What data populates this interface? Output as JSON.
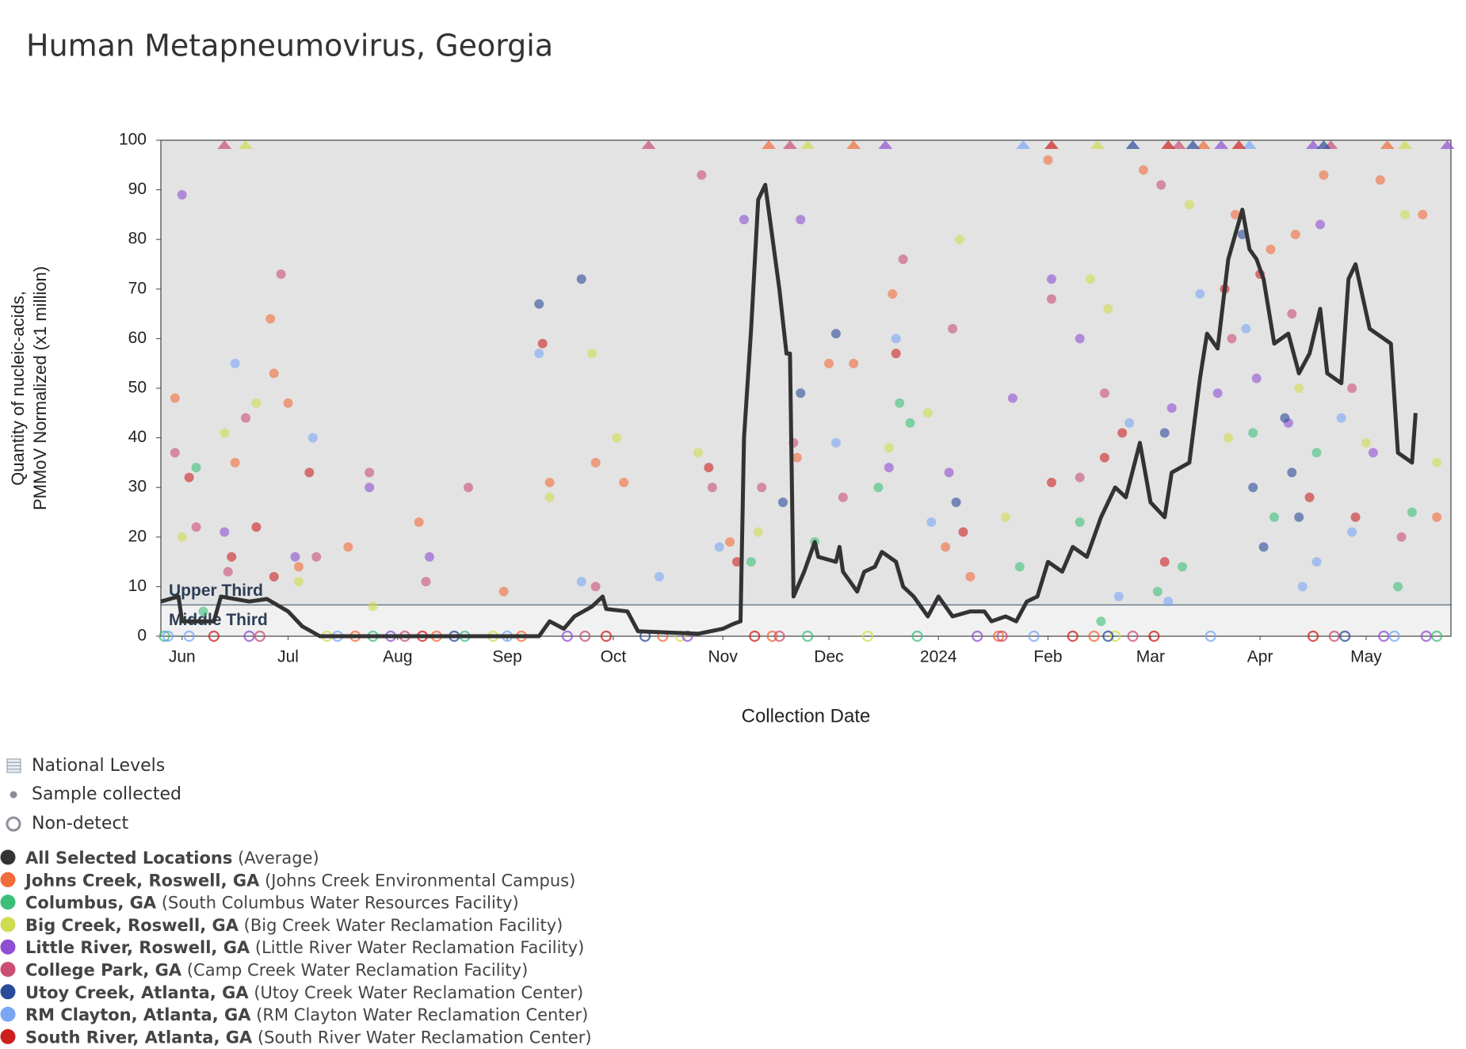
{
  "chart_data": {
    "type": "line",
    "title": "Human Metapneumovirus, Georgia",
    "x_label": "Collection Date",
    "y_label": [
      "Quantity of nucleic-acids,",
      "PMMoV Normalized (x1 million)"
    ],
    "xlim": [
      "2023-05-26",
      "2024-05-25"
    ],
    "ylim": [
      0,
      100
    ],
    "yticks": [
      0,
      10,
      20,
      30,
      40,
      50,
      60,
      70,
      80,
      90,
      100
    ],
    "xticks": [
      {
        "value": "2023-06-01",
        "label": "Jun"
      },
      {
        "value": "2023-07-01",
        "label": "Jul"
      },
      {
        "value": "2023-08-01",
        "label": "Aug"
      },
      {
        "value": "2023-09-01",
        "label": "Sep"
      },
      {
        "value": "2023-10-01",
        "label": "Oct"
      },
      {
        "value": "2023-11-01",
        "label": "Nov"
      },
      {
        "value": "2023-12-01",
        "label": "Dec"
      },
      {
        "value": "2024-01-01",
        "label": "2024"
      },
      {
        "value": "2024-02-01",
        "label": "Feb"
      },
      {
        "value": "2024-03-01",
        "label": "Mar"
      },
      {
        "value": "2024-04-01",
        "label": "Apr"
      },
      {
        "value": "2024-05-01",
        "label": "May"
      }
    ],
    "levels": [
      {
        "name": "Middle Third",
        "from": 0,
        "to": 6.3,
        "color": "#f1f1f1"
      },
      {
        "name": "Upper Third",
        "from": 6.3,
        "to": 100,
        "color": "#e3e3e3"
      }
    ],
    "legend_symbols": [
      "National Levels",
      "Sample collected",
      "Non-detect"
    ],
    "series": [
      {
        "name": "All Selected Locations",
        "facility": "(Average)",
        "color": "#333333",
        "x": [
          "2023-05-26",
          "2023-05-31",
          "2023-06-01",
          "2023-06-10",
          "2023-06-12",
          "2023-06-20",
          "2023-06-25",
          "2023-07-01",
          "2023-07-05",
          "2023-07-10",
          "2023-08-15",
          "2023-09-10",
          "2023-09-13",
          "2023-09-17",
          "2023-09-20",
          "2023-09-25",
          "2023-09-28",
          "2023-09-29",
          "2023-10-05",
          "2023-10-08",
          "2023-10-25",
          "2023-11-01",
          "2023-11-04",
          "2023-11-06",
          "2023-11-07",
          "2023-11-09",
          "2023-11-11",
          "2023-11-13",
          "2023-11-17",
          "2023-11-19",
          "2023-11-20",
          "2023-11-21",
          "2023-11-24",
          "2023-11-27",
          "2023-11-28",
          "2023-12-03",
          "2023-12-04",
          "2023-12-05",
          "2023-12-09",
          "2023-12-11",
          "2023-12-14",
          "2023-12-16",
          "2023-12-20",
          "2023-12-22",
          "2023-12-25",
          "2023-12-29",
          "2024-01-01",
          "2024-01-05",
          "2024-01-10",
          "2024-01-14",
          "2024-01-16",
          "2024-01-20",
          "2024-01-23",
          "2024-01-26",
          "2024-01-29",
          "2024-02-01",
          "2024-02-05",
          "2024-02-08",
          "2024-02-12",
          "2024-02-16",
          "2024-02-20",
          "2024-02-23",
          "2024-02-27",
          "2024-03-01",
          "2024-03-05",
          "2024-03-07",
          "2024-03-12",
          "2024-03-15",
          "2024-03-17",
          "2024-03-20",
          "2024-03-23",
          "2024-03-27",
          "2024-03-29",
          "2024-03-31",
          "2024-04-02",
          "2024-04-05",
          "2024-04-09",
          "2024-04-12",
          "2024-04-15",
          "2024-04-18",
          "2024-04-20",
          "2024-04-24",
          "2024-04-26",
          "2024-04-28",
          "2024-05-02",
          "2024-05-08",
          "2024-05-10",
          "2024-05-14",
          "2024-05-15"
        ],
        "values": [
          7,
          8,
          3,
          3,
          8,
          7,
          7.5,
          5,
          2,
          0,
          0,
          0,
          3,
          1.5,
          4,
          6,
          8,
          5.5,
          5,
          1,
          0.5,
          1.5,
          2.5,
          3,
          40,
          62,
          88,
          91,
          70,
          57,
          57,
          8,
          13,
          19,
          16,
          15,
          18,
          13,
          9,
          13,
          14,
          17,
          15,
          10,
          8,
          4,
          8,
          4,
          5,
          5,
          3,
          4,
          3,
          7,
          8,
          15,
          13,
          18,
          16,
          24,
          30,
          28,
          39,
          27,
          24,
          33,
          35,
          52,
          61,
          58,
          76,
          86,
          78,
          76,
          72,
          59,
          61,
          53,
          57,
          66,
          53,
          51,
          72,
          75,
          62,
          59,
          37,
          35,
          45
        ]
      },
      {
        "name": "Johns Creek, Roswell, GA",
        "facility": "(Johns Creek Environmental Campus)",
        "color": "#f26b3a",
        "x": [
          "2023-05-30",
          "2023-06-16",
          "2023-06-26",
          "2023-06-27",
          "2023-07-01",
          "2023-07-04",
          "2023-07-18",
          "2023-08-07",
          "2023-08-31",
          "2023-09-13",
          "2023-09-26",
          "2023-10-04",
          "2023-11-03",
          "2023-11-22",
          "2023-12-01",
          "2023-12-08",
          "2023-12-19",
          "2024-01-03",
          "2024-01-10",
          "2024-02-01",
          "2024-02-28",
          "2024-03-25",
          "2024-04-04",
          "2024-04-11",
          "2024-04-19",
          "2024-05-05",
          "2024-05-17",
          "2024-05-21"
        ],
        "values": [
          48,
          35,
          64,
          53,
          47,
          14,
          18,
          23,
          9,
          31,
          35,
          31,
          19,
          36,
          55,
          55,
          69,
          18,
          12,
          96,
          94,
          85,
          78,
          81,
          93,
          92,
          85,
          24
        ],
        "nondetect_x": [
          "2023-07-20",
          "2023-08-12",
          "2023-09-05",
          "2023-10-15",
          "2023-11-15",
          "2024-01-18",
          "2024-02-14"
        ],
        "above_x": [
          "2023-11-14",
          "2023-12-08",
          "2024-03-16",
          "2024-05-07"
        ]
      },
      {
        "name": "Columbus, GA",
        "facility": "(South Columbus Water Resources Facility)",
        "color": "#3dbf7a",
        "x": [
          "2023-06-05",
          "2023-06-07",
          "2023-11-09",
          "2023-11-27",
          "2023-12-15",
          "2023-12-21",
          "2023-12-24",
          "2024-01-24",
          "2024-02-10",
          "2024-02-16",
          "2024-03-03",
          "2024-03-10",
          "2024-03-30",
          "2024-04-05",
          "2024-04-17",
          "2024-05-10",
          "2024-05-14"
        ],
        "values": [
          34,
          5,
          15,
          19,
          30,
          47,
          43,
          14,
          23,
          3,
          9,
          14,
          41,
          24,
          37,
          10,
          25
        ],
        "nondetect_x": [
          "2023-05-27",
          "2023-07-25",
          "2023-08-20",
          "2023-11-25",
          "2023-12-26",
          "2024-05-21"
        ],
        "above_x": []
      },
      {
        "name": "Big Creek, Roswell, GA",
        "facility": "(Big Creek Water Reclamation Facility)",
        "color": "#cfdc4f",
        "x": [
          "2023-06-01",
          "2023-06-13",
          "2023-06-22",
          "2023-07-04",
          "2023-07-25",
          "2023-09-13",
          "2023-09-25",
          "2023-10-02",
          "2023-10-25",
          "2023-11-11",
          "2023-12-18",
          "2023-12-29",
          "2024-01-07",
          "2024-01-20",
          "2024-02-13",
          "2024-02-18",
          "2024-03-12",
          "2024-03-23",
          "2024-04-12",
          "2024-05-01",
          "2024-05-12",
          "2024-05-21"
        ],
        "values": [
          20,
          41,
          47,
          11,
          6,
          28,
          57,
          40,
          37,
          21,
          38,
          45,
          80,
          24,
          72,
          66,
          87,
          40,
          50,
          39,
          85,
          35
        ],
        "nondetect_x": [
          "2023-07-12",
          "2023-08-28",
          "2023-10-20",
          "2023-12-12",
          "2024-02-20"
        ],
        "above_x": [
          "2023-06-19",
          "2023-11-25",
          "2024-02-15",
          "2024-05-12"
        ]
      },
      {
        "name": "Little River, Roswell, GA",
        "facility": "(Little River Water Reclamation Facility)",
        "color": "#8e4fd1",
        "x": [
          "2023-06-01",
          "2023-06-13",
          "2023-07-03",
          "2023-07-24",
          "2023-08-10",
          "2023-11-07",
          "2023-11-23",
          "2023-12-18",
          "2024-01-04",
          "2024-01-22",
          "2024-02-02",
          "2024-02-10",
          "2024-03-07",
          "2024-03-20",
          "2024-03-31",
          "2024-04-09",
          "2024-04-18",
          "2024-05-03"
        ],
        "values": [
          89,
          21,
          16,
          30,
          16,
          84,
          84,
          34,
          33,
          48,
          72,
          60,
          46,
          49,
          52,
          43,
          83,
          37
        ],
        "nondetect_x": [
          "2023-06-20",
          "2023-07-30",
          "2023-09-18",
          "2023-10-22",
          "2024-01-12",
          "2024-05-06",
          "2024-05-18"
        ],
        "above_x": [
          "2023-12-17",
          "2024-03-21",
          "2024-04-16",
          "2024-05-24"
        ]
      },
      {
        "name": "College Park, GA",
        "facility": "(Camp Creek Water Reclamation Facility)",
        "color": "#c94f73",
        "x": [
          "2023-05-30",
          "2023-06-05",
          "2023-06-14",
          "2023-06-19",
          "2023-06-29",
          "2023-07-09",
          "2023-07-24",
          "2023-08-09",
          "2023-08-21",
          "2023-09-26",
          "2023-10-26",
          "2023-10-29",
          "2023-11-12",
          "2023-11-21",
          "2023-12-05",
          "2023-12-22",
          "2024-01-05",
          "2024-02-02",
          "2024-02-10",
          "2024-02-17",
          "2024-03-04",
          "2024-03-24",
          "2024-04-10",
          "2024-04-27",
          "2024-05-11"
        ],
        "values": [
          37,
          22,
          13,
          44,
          73,
          16,
          33,
          11,
          30,
          10,
          93,
          30,
          30,
          39,
          28,
          76,
          62,
          68,
          32,
          49,
          91,
          60,
          65,
          50,
          20
        ],
        "nondetect_x": [
          "2023-06-23",
          "2023-08-03",
          "2023-09-23",
          "2023-11-17",
          "2024-01-19",
          "2024-02-25",
          "2024-04-22"
        ],
        "above_x": [
          "2023-06-13",
          "2023-10-11",
          "2023-11-20",
          "2024-03-09",
          "2024-04-21"
        ]
      },
      {
        "name": "Utoy Creek, Atlanta, GA",
        "facility": "(Utoy Creek Water Reclamation Center)",
        "color": "#2a4a9a",
        "x": [
          "2023-09-10",
          "2023-09-22",
          "2023-11-18",
          "2023-11-23",
          "2023-12-03",
          "2024-01-06",
          "2024-03-05",
          "2024-03-27",
          "2024-03-30",
          "2024-04-02",
          "2024-04-08",
          "2024-04-10",
          "2024-04-12"
        ],
        "values": [
          67,
          72,
          27,
          49,
          61,
          27,
          41,
          81,
          30,
          18,
          44,
          33,
          24
        ],
        "nondetect_x": [
          "2023-08-17",
          "2023-10-10",
          "2024-02-18",
          "2024-04-25"
        ],
        "above_x": [
          "2024-02-25",
          "2024-03-13",
          "2024-04-19"
        ]
      },
      {
        "name": "RM Clayton, Atlanta, GA",
        "facility": "(RM Clayton Water Reclamation Center)",
        "color": "#7aa6f5",
        "x": [
          "2023-06-16",
          "2023-07-08",
          "2023-09-10",
          "2023-09-22",
          "2023-10-14",
          "2023-10-31",
          "2023-12-03",
          "2023-12-20",
          "2023-12-30",
          "2024-02-21",
          "2024-02-24",
          "2024-03-06",
          "2024-03-15",
          "2024-03-28",
          "2024-04-13",
          "2024-04-17",
          "2024-04-24",
          "2024-04-27"
        ],
        "values": [
          55,
          40,
          57,
          11,
          12,
          18,
          39,
          60,
          23,
          8,
          43,
          7,
          69,
          62,
          10,
          15,
          44,
          21
        ],
        "nondetect_x": [
          "2023-05-28",
          "2023-06-03",
          "2023-07-15",
          "2023-09-01",
          "2024-01-28",
          "2024-03-18",
          "2024-05-09"
        ],
        "above_x": [
          "2024-01-25",
          "2024-03-29"
        ]
      },
      {
        "name": "South River, Atlanta, GA",
        "facility": "(South River Water Reclamation Center)",
        "color": "#cc1f1f",
        "x": [
          "2023-06-03",
          "2023-06-15",
          "2023-06-22",
          "2023-06-27",
          "2023-07-07",
          "2023-09-11",
          "2023-10-28",
          "2023-11-05",
          "2023-12-20",
          "2024-01-08",
          "2024-02-02",
          "2024-02-17",
          "2024-02-22",
          "2024-03-05",
          "2024-03-22",
          "2024-04-01",
          "2024-04-15",
          "2024-04-28"
        ],
        "values": [
          32,
          16,
          22,
          12,
          33,
          59,
          34,
          15,
          57,
          21,
          31,
          36,
          41,
          15,
          70,
          73,
          28,
          24
        ],
        "nondetect_x": [
          "2023-06-10",
          "2023-08-08",
          "2023-09-29",
          "2023-11-10",
          "2024-02-08",
          "2024-03-02",
          "2024-04-16"
        ],
        "above_x": [
          "2024-02-02",
          "2024-03-06",
          "2024-03-26"
        ]
      }
    ]
  }
}
